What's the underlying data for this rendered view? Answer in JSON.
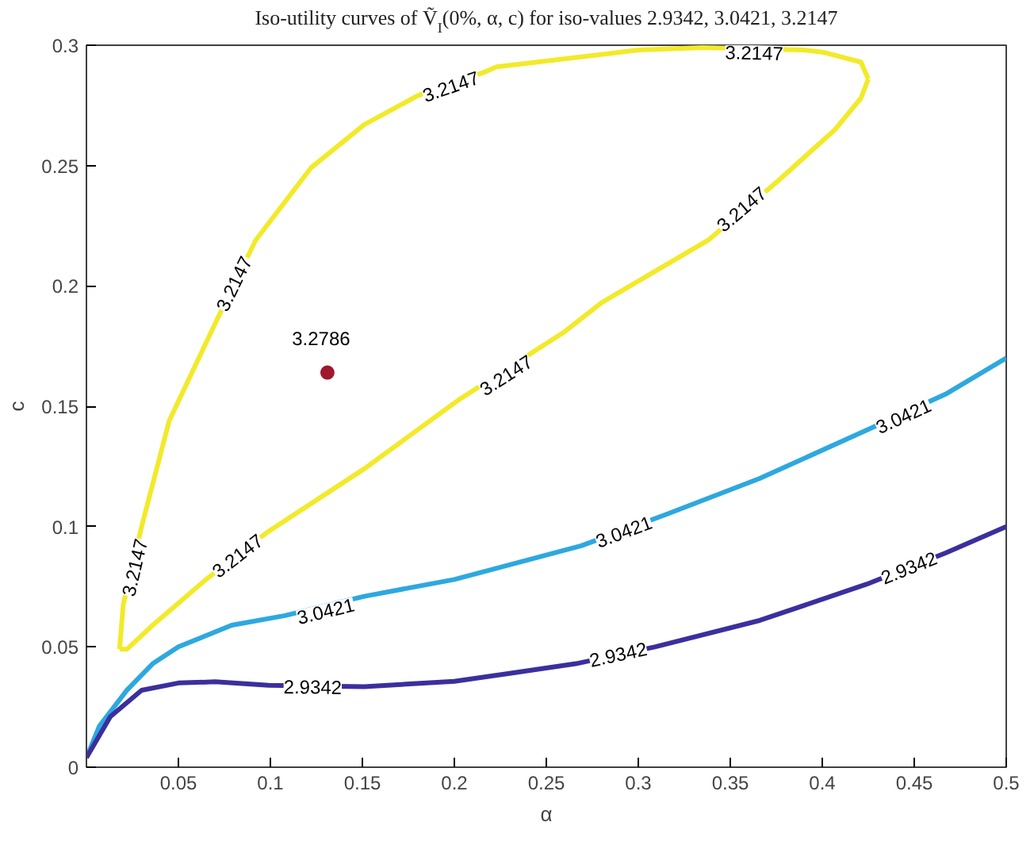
{
  "chart_data": {
    "type": "line",
    "title": "Iso-utility curves of Ṽ$_{I}$(0%, α, c) for iso-values 2.9342, 3.0421, 3.2147",
    "xlabel": "α",
    "ylabel": "c",
    "xlim": [
      0,
      0.5
    ],
    "ylim": [
      0,
      0.3
    ],
    "xticks": [
      0.05,
      0.1,
      0.15,
      0.2,
      0.25,
      0.3,
      0.35,
      0.4,
      0.45,
      0.5
    ],
    "yticks": [
      0,
      0.05,
      0.1,
      0.15,
      0.2,
      0.25,
      0.3
    ],
    "grid": false,
    "legend": false,
    "marker": "none",
    "line_style": "solid",
    "series": [
      {
        "color": "#f2ea2a",
        "x": [
          0.018,
          0.02,
          0.03,
          0.045,
          0.071,
          0.092,
          0.122,
          0.151,
          0.18,
          0.217,
          0.223,
          0.3,
          0.335,
          0.39,
          0.401,
          0.421,
          0.425
        ],
        "values": [
          0.049,
          0.0675,
          0.1,
          0.144,
          0.186,
          0.219,
          0.249,
          0.267,
          0.279,
          0.289,
          0.291,
          0.298,
          0.299,
          0.298,
          0.297,
          0.293,
          0.286
        ]
      },
      {
        "color": "#f2ea2a",
        "x": [
          0.018,
          0.022,
          0.036,
          0.065,
          0.099,
          0.151,
          0.203,
          0.26,
          0.28,
          0.338,
          0.375,
          0.407,
          0.421,
          0.425
        ],
        "values": [
          0.049,
          0.049,
          0.059,
          0.078,
          0.098,
          0.124,
          0.153,
          0.181,
          0.193,
          0.219,
          0.243,
          0.265,
          0.278,
          0.286
        ]
      },
      {
        "color": "#2ea8df",
        "x": [
          0,
          0.007,
          0.022,
          0.036,
          0.05,
          0.079,
          0.108,
          0.151,
          0.2,
          0.269,
          0.315,
          0.366,
          0.424,
          0.467,
          0.5
        ],
        "values": [
          0.004,
          0.017,
          0.032,
          0.043,
          0.05,
          0.059,
          0.063,
          0.071,
          0.078,
          0.092,
          0.105,
          0.12,
          0.14,
          0.155,
          0.17
        ]
      },
      {
        "color": "#3b2f9e",
        "x": [
          0,
          0.013,
          0.03,
          0.05,
          0.07,
          0.099,
          0.151,
          0.2,
          0.23,
          0.266,
          0.309,
          0.366,
          0.424,
          0.467,
          0.5
        ],
        "values": [
          0.004,
          0.021,
          0.032,
          0.035,
          0.0355,
          0.034,
          0.0335,
          0.0357,
          0.039,
          0.043,
          0.05,
          0.061,
          0.076,
          0.089,
          0.1
        ]
      },
      {
        "type": "scatter",
        "name": "3.2786",
        "marker": "circle",
        "color": "#a0182d",
        "x": [
          0.131
        ],
        "values": [
          0.164
        ]
      }
    ],
    "annotations": [
      {
        "text": "3.2147",
        "x": 0.08,
        "y": 0.201
      },
      {
        "text": "3.2147",
        "x": 0.026,
        "y": 0.083
      },
      {
        "text": "3.2147",
        "x": 0.082,
        "y": 0.088
      },
      {
        "text": "3.2147",
        "x": 0.228,
        "y": 0.163
      },
      {
        "text": "3.2147",
        "x": 0.356,
        "y": 0.232
      },
      {
        "text": "3.2147",
        "x": 0.198,
        "y": 0.283
      },
      {
        "text": "3.2147",
        "x": 0.363,
        "y": 0.297
      },
      {
        "text": "3.0421",
        "x": 0.13,
        "y": 0.065
      },
      {
        "text": "3.0421",
        "x": 0.292,
        "y": 0.098
      },
      {
        "text": "3.0421",
        "x": 0.444,
        "y": 0.146
      },
      {
        "text": "2.9342",
        "x": 0.123,
        "y": 0.0335
      },
      {
        "text": "2.9342",
        "x": 0.289,
        "y": 0.047
      },
      {
        "text": "2.9342",
        "x": 0.447,
        "y": 0.083
      }
    ]
  }
}
